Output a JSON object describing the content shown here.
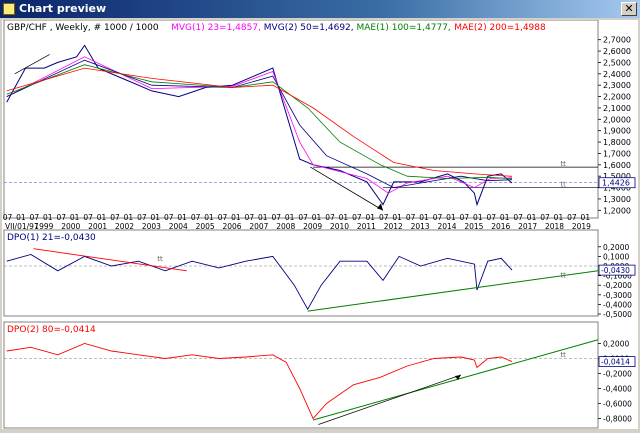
{
  "window": {
    "title": "Chart preview",
    "close_glyph": "✕",
    "close_icon": "close-icon",
    "app_icon": "chart-icon"
  },
  "panels": {
    "main": {
      "header_parts": [
        {
          "text": "GBP/CHF , Weekly, # 1000 / 1000",
          "color": "#000000"
        },
        {
          "text": "MVG(1) 23=1,4857,",
          "color": "#ff00ff"
        },
        {
          "text": "MVG(2) 50=1,4692,",
          "color": "#000080"
        },
        {
          "text": "MAE(1) 100=1,4777,",
          "color": "#008000"
        },
        {
          "text": "MAE(2) 200=1,4988",
          "color": "#ff0000"
        }
      ],
      "y_ticks": [
        "2,7000",
        "2,6000",
        "2,5000",
        "2,4000",
        "2,3000",
        "2,2000",
        "2,1000",
        "2,0000",
        "1,9000",
        "1,8000",
        "1,7000",
        "1,6000",
        "1,5000",
        "1,4000",
        "1,3000",
        "1,2000"
      ],
      "price_label": "1,4426",
      "marker_text": "tt",
      "month_labels": [
        "07",
        "01",
        "07",
        "01",
        "07",
        "01",
        "07",
        "01",
        "07",
        "01",
        "07",
        "01",
        "07",
        "01",
        "07",
        "01",
        "07",
        "01",
        "07",
        "01",
        "07",
        "01",
        "07",
        "01",
        "07",
        "01",
        "07",
        "01",
        "07",
        "01",
        "07",
        "01",
        "07",
        "01",
        "07",
        "01",
        "07",
        "01",
        "07",
        "01",
        "07",
        "01",
        "07",
        "01",
        "07",
        "01",
        "07",
        "01",
        "07",
        "01",
        "07",
        "01",
        "07",
        "01",
        "07",
        "01",
        "07",
        "01",
        "07"
      ],
      "year_labels": [
        "1999",
        "2000",
        "2001",
        "2002",
        "2003",
        "2004",
        "2005",
        "2006",
        "2007",
        "2008",
        "2009",
        "2010",
        "2011",
        "2012",
        "2013",
        "2014",
        "2015",
        "2016",
        "2017",
        "2018",
        "2019"
      ],
      "start_label": "VII/01/97"
    },
    "dpo1": {
      "header": "DPO(1) 21=-0,0430",
      "color": "#000080",
      "y_ticks": [
        "0,2000",
        "0,1000",
        "0,0000",
        "-0,1000",
        "-0,2000",
        "-0,3000",
        "-0,4000",
        "-0,5000"
      ],
      "value_label": "-0,0430",
      "marker_text": "tt"
    },
    "dpo2": {
      "header": "DPO(2) 80=-0,0414",
      "color": "#ff0000",
      "y_ticks": [
        "0,2000",
        "0,0000",
        "-0,2000",
        "-0,4000",
        "-0,6000",
        "-0,8000"
      ],
      "value_label": "-0,0414",
      "marker_text": "tt"
    }
  },
  "chart_data": [
    {
      "type": "line",
      "title": "GBP/CHF , Weekly, # 1000 / 1000",
      "x_start": "1997-07",
      "x_end": "2019-07",
      "ylim": [
        1.15,
        2.75
      ],
      "current_value": 1.4426,
      "horizontal_levels": [
        1.58,
        1.4
      ],
      "series": [
        {
          "name": "GBP/CHF",
          "color": "#000080",
          "x": [
            1997.6,
            1998.3,
            1999.0,
            1999.5,
            2000.2,
            2000.5,
            2001.0,
            2002.0,
            2003.0,
            2004.0,
            2005.0,
            2006.0,
            2007.0,
            2007.5,
            2008.0,
            2008.5,
            2009.0,
            2010.0,
            2011.0,
            2011.6,
            2012.0,
            2013.0,
            2014.0,
            2014.6,
            2015.0,
            2015.1,
            2015.5,
            2016.0,
            2016.4
          ],
          "y": [
            2.15,
            2.45,
            2.45,
            2.5,
            2.55,
            2.65,
            2.45,
            2.35,
            2.25,
            2.2,
            2.28,
            2.3,
            2.4,
            2.45,
            2.05,
            1.65,
            1.6,
            1.55,
            1.45,
            1.25,
            1.45,
            1.45,
            1.52,
            1.45,
            1.35,
            1.25,
            1.5,
            1.52,
            1.44
          ]
        },
        {
          "name": "MVG(1) 23",
          "color": "#ff00ff",
          "x": [
            1997.6,
            2000.5,
            2003.0,
            2006.0,
            2007.5,
            2008.5,
            2009.0,
            2011.0,
            2011.8,
            2012.5,
            2014.0,
            2015.0,
            2015.6,
            2016.4
          ],
          "y": [
            2.2,
            2.55,
            2.27,
            2.29,
            2.42,
            1.8,
            1.6,
            1.48,
            1.35,
            1.44,
            1.5,
            1.4,
            1.48,
            1.4857
          ]
        },
        {
          "name": "MVG(2) 50",
          "color": "#000080",
          "x": [
            1997.6,
            2000.5,
            2003.0,
            2006.0,
            2007.5,
            2008.5,
            2009.5,
            2011.0,
            2012.0,
            2013.0,
            2014.5,
            2015.5,
            2016.4
          ],
          "y": [
            2.2,
            2.52,
            2.3,
            2.28,
            2.38,
            1.95,
            1.68,
            1.52,
            1.4,
            1.44,
            1.5,
            1.46,
            1.4692
          ]
        },
        {
          "name": "MAE(1) 100",
          "color": "#008000",
          "x": [
            1997.6,
            2000.5,
            2003.0,
            2006.0,
            2007.5,
            2008.8,
            2010.0,
            2011.5,
            2012.5,
            2014.0,
            2015.5,
            2016.4
          ],
          "y": [
            2.22,
            2.48,
            2.33,
            2.28,
            2.33,
            2.1,
            1.8,
            1.6,
            1.5,
            1.48,
            1.49,
            1.4777
          ]
        },
        {
          "name": "MAE(2) 200",
          "color": "#ff0000",
          "x": [
            1997.6,
            2000.5,
            2003.0,
            2006.0,
            2007.5,
            2009.0,
            2010.5,
            2012.0,
            2013.5,
            2015.0,
            2016.4
          ],
          "y": [
            2.25,
            2.45,
            2.36,
            2.28,
            2.3,
            2.1,
            1.85,
            1.62,
            1.55,
            1.52,
            1.4988
          ]
        }
      ]
    },
    {
      "type": "line",
      "title": "DPO(1) 21=-0,0430",
      "ylim": [
        -0.5,
        0.25
      ],
      "series": [
        {
          "name": "DPO(1) 21",
          "color": "#000080",
          "x": [
            1997.6,
            1998.5,
            1999.5,
            2000.5,
            2001.5,
            2002.5,
            2003.5,
            2004.5,
            2005.5,
            2006.5,
            2007.5,
            2008.3,
            2008.8,
            2009.3,
            2010.0,
            2011.0,
            2011.6,
            2012.2,
            2013.0,
            2014.0,
            2015.0,
            2015.1,
            2015.5,
            2016.0,
            2016.4
          ],
          "y": [
            0.05,
            0.12,
            -0.05,
            0.1,
            0.0,
            0.05,
            -0.05,
            0.05,
            -0.02,
            0.05,
            0.1,
            -0.2,
            -0.45,
            -0.2,
            0.05,
            0.05,
            -0.15,
            0.1,
            0.0,
            0.08,
            0.02,
            -0.25,
            0.05,
            0.08,
            -0.043
          ]
        }
      ]
    },
    {
      "type": "line",
      "title": "DPO(2) 80=-0,0414",
      "ylim": [
        -0.9,
        0.3
      ],
      "series": [
        {
          "name": "DPO(2) 80",
          "color": "#ff0000",
          "x": [
            1997.6,
            1998.5,
            1999.5,
            2000.5,
            2001.5,
            2002.5,
            2003.5,
            2004.5,
            2005.5,
            2006.5,
            2007.5,
            2008.0,
            2008.5,
            2009.0,
            2009.5,
            2010.5,
            2011.5,
            2012.5,
            2013.5,
            2014.5,
            2015.0,
            2015.1,
            2015.5,
            2016.0,
            2016.4
          ],
          "y": [
            0.1,
            0.15,
            0.05,
            0.2,
            0.1,
            0.05,
            0.0,
            0.05,
            0.0,
            0.02,
            0.05,
            -0.05,
            -0.4,
            -0.8,
            -0.6,
            -0.35,
            -0.25,
            -0.1,
            0.0,
            0.02,
            -0.02,
            -0.12,
            0.0,
            0.02,
            -0.0414
          ]
        }
      ]
    }
  ]
}
